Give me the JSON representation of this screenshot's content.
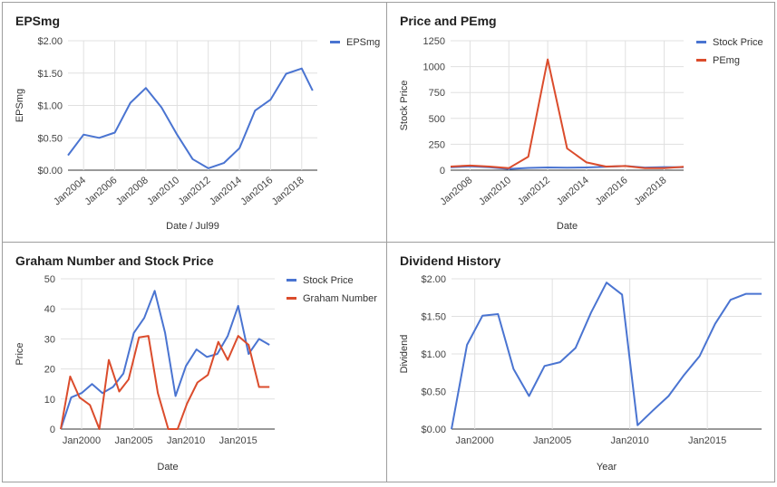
{
  "charts": [
    {
      "title": "EPSmg",
      "xlabel": "Date / Jul99",
      "ylabel": "EPSmg"
    },
    {
      "title": "Price and PEmg",
      "xlabel": "Date",
      "ylabel": "Stock Price"
    },
    {
      "title": "Graham Number and Stock Price",
      "xlabel": "Date",
      "ylabel": "Price"
    },
    {
      "title": "Dividend History",
      "xlabel": "Year",
      "ylabel": "Dividend"
    }
  ],
  "chart_data": [
    {
      "type": "line",
      "title": "EPSmg",
      "xlabel": "Date / Jul99",
      "ylabel": "EPSmg",
      "xlim": [
        2003,
        2019
      ],
      "ylim": [
        0,
        2
      ],
      "yticks": [
        "$0.00",
        "$0.50",
        "$1.00",
        "$1.50",
        "$2.00"
      ],
      "yticks_values": [
        0,
        0.5,
        1,
        1.5,
        2
      ],
      "xticks": [
        "Jan2004",
        "Jan2006",
        "Jan2008",
        "Jan2010",
        "Jan2012",
        "Jan2014",
        "Jan2016",
        "Jan2018"
      ],
      "xticks_values": [
        2004,
        2006,
        2008,
        2010,
        2012,
        2014,
        2016,
        2018
      ],
      "tick_rotate": true,
      "grid": true,
      "legend": "top-right",
      "series": [
        {
          "name": "EPSmg",
          "color": "#4a74d1",
          "x": [
            2003,
            2004,
            2005,
            2006,
            2007,
            2008,
            2009,
            2010,
            2011,
            2012,
            2013,
            2014,
            2015,
            2016,
            2017,
            2018,
            2018.7
          ],
          "y": [
            0.23,
            0.55,
            0.5,
            0.58,
            1.04,
            1.27,
            0.97,
            0.55,
            0.17,
            0.03,
            0.11,
            0.34,
            0.92,
            1.09,
            1.49,
            1.57,
            1.23
          ]
        }
      ]
    },
    {
      "type": "line",
      "title": "Price and PEmg",
      "xlabel": "Date",
      "ylabel": "Stock Price",
      "xlim": [
        2007,
        2019
      ],
      "ylim": [
        0,
        1250
      ],
      "yticks": [
        "0",
        "250",
        "500",
        "750",
        "1000",
        "1250"
      ],
      "yticks_values": [
        0,
        250,
        500,
        750,
        1000,
        1250
      ],
      "xticks": [
        "Jan2008",
        "Jan2010",
        "Jan2012",
        "Jan2014",
        "Jan2016",
        "Jan2018"
      ],
      "xticks_values": [
        2008,
        2010,
        2012,
        2014,
        2016,
        2018
      ],
      "tick_rotate": true,
      "grid": true,
      "legend": "top-right",
      "series": [
        {
          "name": "Stock Price",
          "color": "#4a74d1",
          "x": [
            2007,
            2008,
            2009,
            2010,
            2011,
            2012,
            2013,
            2014,
            2015,
            2016,
            2017,
            2018,
            2019
          ],
          "y": [
            28,
            37,
            28,
            12,
            22,
            26,
            24,
            26,
            32,
            40,
            25,
            30,
            28
          ]
        },
        {
          "name": "PEmg",
          "color": "#db4c2c",
          "x": [
            2007,
            2008,
            2009,
            2010,
            2011,
            2012,
            2013,
            2014,
            2015,
            2016,
            2017,
            2018,
            2019
          ],
          "y": [
            35,
            45,
            35,
            20,
            130,
            1070,
            210,
            75,
            35,
            40,
            20,
            20,
            32
          ]
        }
      ]
    },
    {
      "type": "line",
      "title": "Graham Number and Stock Price",
      "xlabel": "Date",
      "ylabel": "Price",
      "xlim": [
        1998,
        2018.5
      ],
      "ylim": [
        0,
        50
      ],
      "yticks": [
        "0",
        "10",
        "20",
        "30",
        "40",
        "50"
      ],
      "yticks_values": [
        0,
        10,
        20,
        30,
        40,
        50
      ],
      "xticks": [
        "Jan2000",
        "Jan2005",
        "Jan2010",
        "Jan2015"
      ],
      "xticks_values": [
        2000,
        2005,
        2010,
        2015
      ],
      "tick_rotate": false,
      "grid": true,
      "legend": "top-right",
      "series": [
        {
          "name": "Stock Price",
          "color": "#4a74d1",
          "x": [
            1998,
            1999,
            2000,
            2001,
            2002,
            2003,
            2004,
            2005,
            2006,
            2007,
            2008,
            2009,
            2010,
            2011,
            2012,
            2013,
            2014,
            2015,
            2016,
            2017,
            2018
          ],
          "y": [
            0,
            10.5,
            12,
            15,
            12,
            14,
            18.5,
            32,
            37,
            46,
            32,
            11,
            21,
            26.5,
            24,
            25,
            31,
            41,
            25,
            30,
            28
          ]
        },
        {
          "name": "Graham Number",
          "color": "#db4c2c",
          "x": [
            1998,
            1998.9,
            1999.8,
            2000.8,
            2001.7,
            2002.6,
            2003.6,
            2004.5,
            2005.5,
            2006.4,
            2007.3,
            2008.3,
            2009.2,
            2010.1,
            2011.1,
            2012.1,
            2013.1,
            2014,
            2015,
            2016,
            2017,
            2018
          ],
          "y": [
            0,
            17.5,
            10.5,
            8,
            0,
            23,
            12.5,
            16.5,
            30.5,
            31,
            12,
            0,
            0,
            8.5,
            15.5,
            18,
            29,
            23,
            31,
            28,
            14,
            14
          ]
        }
      ]
    },
    {
      "type": "line",
      "title": "Dividend History",
      "xlabel": "Year",
      "ylabel": "Dividend",
      "xlim": [
        1998.5,
        2018.5
      ],
      "ylim": [
        0,
        2
      ],
      "yticks": [
        "$0.00",
        "$0.50",
        "$1.00",
        "$1.50",
        "$2.00"
      ],
      "yticks_values": [
        0,
        0.5,
        1,
        1.5,
        2
      ],
      "xticks": [
        "Jan2000",
        "Jan2005",
        "Jan2010",
        "Jan2015"
      ],
      "xticks_values": [
        2000,
        2005,
        2010,
        2015
      ],
      "tick_rotate": false,
      "grid": true,
      "legend": "none",
      "series": [
        {
          "name": "",
          "color": "#4a74d1",
          "x": [
            1998.5,
            1999.5,
            2000.5,
            2001.5,
            2002.5,
            2003.5,
            2004.5,
            2005.5,
            2006.5,
            2007.5,
            2008.5,
            2009.5,
            2010.5,
            2011.5,
            2012.5,
            2013.5,
            2014.5,
            2015.5,
            2016.5,
            2017.5,
            2018.5
          ],
          "y": [
            0,
            1.12,
            1.51,
            1.53,
            0.8,
            0.44,
            0.84,
            0.89,
            1.08,
            1.55,
            1.95,
            1.79,
            0.05,
            0.25,
            0.44,
            0.72,
            0.97,
            1.4,
            1.72,
            1.8,
            1.8
          ]
        }
      ]
    }
  ]
}
